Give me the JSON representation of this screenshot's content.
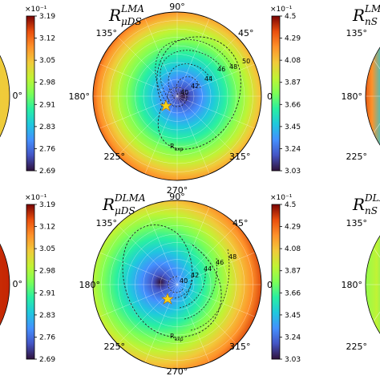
{
  "chart_data": [
    {
      "type": "heatmap",
      "projection": "polar",
      "title": {
        "base": "R",
        "sup": "LMA",
        "sub": "μDS"
      },
      "angle_ticks": [
        "0°",
        "45°",
        "90°",
        "135°",
        "180°",
        "225°",
        "270°",
        "315°"
      ],
      "contour_levels": [
        "40",
        "42",
        "44",
        "46",
        "48",
        "50"
      ],
      "contour_label": "R",
      "contour_label_sub": "exp",
      "marker": "star",
      "colorbar": {
        "exponent": "×10⁻¹",
        "ticks": [
          "3.03",
          "3.24",
          "3.45",
          "3.66",
          "3.87",
          "4.08",
          "4.29",
          "4.5"
        ],
        "min": 3.03,
        "max": 4.5,
        "colormap": "turbo"
      },
      "minimum_direction_deg": 0,
      "grid": true
    },
    {
      "type": "heatmap",
      "projection": "polar",
      "title": {
        "base": "R",
        "sup": "DLMA",
        "sub": "μDS"
      },
      "angle_ticks": [
        "0°",
        "45°",
        "90°",
        "135°",
        "180°",
        "225°",
        "270°",
        "315°"
      ],
      "contour_levels": [
        "40",
        "42",
        "44",
        "46",
        "48"
      ],
      "contour_label": "R",
      "contour_label_sub": "exp",
      "marker": "star",
      "colorbar": {
        "exponent": "×10⁻¹",
        "ticks": [
          "3.03",
          "3.24",
          "3.45",
          "3.66",
          "3.87",
          "4.08",
          "4.29",
          "4.5"
        ],
        "min": 3.03,
        "max": 4.5,
        "colormap": "turbo"
      },
      "minimum_direction_deg": 180,
      "grid": true
    },
    {
      "type": "heatmap",
      "projection": "polar",
      "partial": true,
      "angle_ticks": [
        "0°"
      ],
      "colorbar": {
        "exponent": "×10⁻¹",
        "ticks": [
          "2.69",
          "2.76",
          "2.83",
          "2.91",
          "2.98",
          "3.05",
          "3.12",
          "3.19"
        ],
        "min": 2.69,
        "max": 3.19,
        "colormap": "turbo"
      }
    },
    {
      "type": "heatmap",
      "projection": "polar",
      "partial": true,
      "angle_ticks": [
        "0°"
      ],
      "colorbar": {
        "exponent": "×10⁻¹",
        "ticks": [
          "2.69",
          "2.76",
          "2.83",
          "2.91",
          "2.98",
          "3.05",
          "3.12",
          "3.19"
        ],
        "min": 2.69,
        "max": 3.19,
        "colormap": "turbo"
      }
    },
    {
      "type": "heatmap",
      "projection": "polar",
      "partial": true,
      "title": {
        "base": "R",
        "sup": "LMA",
        "sub": "nS"
      },
      "angle_ticks": [
        "135°",
        "180°",
        "225°"
      ]
    },
    {
      "type": "heatmap",
      "projection": "polar",
      "partial": true,
      "title": {
        "base": "R",
        "sup": "DLMA",
        "sub": "nS"
      },
      "angle_ticks": [
        "135°",
        "180°",
        "225°"
      ]
    }
  ]
}
